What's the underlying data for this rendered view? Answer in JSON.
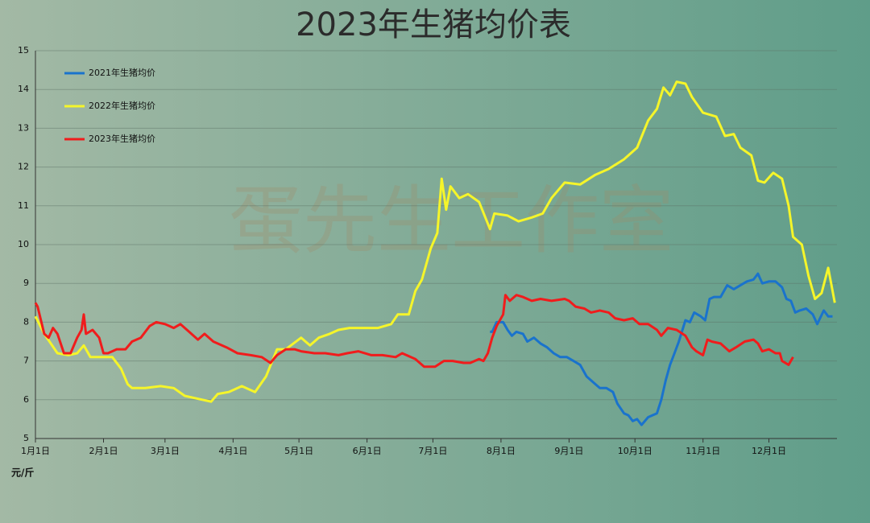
{
  "chart_data": {
    "type": "line",
    "title": "2023年生猪均价表",
    "watermark": "蛋先生工作室",
    "y_label": "元/斤",
    "xlim": [
      0,
      365
    ],
    "ylim": [
      5,
      15
    ],
    "yticks": [
      5,
      6,
      7,
      8,
      9,
      10,
      11,
      12,
      13,
      14,
      15
    ],
    "grid": true,
    "legend": "top-left",
    "xticks": [
      {
        "value": 0,
        "label": "1月1日"
      },
      {
        "value": 31,
        "label": "2月1日"
      },
      {
        "value": 59,
        "label": "3月1日"
      },
      {
        "value": 90,
        "label": "4月1日"
      },
      {
        "value": 120,
        "label": "5月1日"
      },
      {
        "value": 151,
        "label": "6月1日"
      },
      {
        "value": 181,
        "label": "7月1日"
      },
      {
        "value": 212,
        "label": "8月1日"
      },
      {
        "value": 243,
        "label": "9月1日"
      },
      {
        "value": 273,
        "label": "10月1日"
      },
      {
        "value": 304,
        "label": "11月1日"
      },
      {
        "value": 334,
        "label": "12月1日"
      }
    ],
    "series": [
      {
        "name": "2021年生猪均价",
        "color": "#1a73cc",
        "x": [
          207,
          208,
          210,
          213,
          215,
          217,
          219,
          222,
          224,
          227,
          230,
          233,
          236,
          239,
          242,
          245,
          248,
          251,
          254,
          257,
          260,
          263,
          265,
          268,
          270,
          272,
          274,
          276,
          279,
          281,
          283,
          285,
          287,
          289,
          291,
          293,
          296,
          298,
          300,
          303,
          305,
          307,
          309,
          312,
          315,
          318,
          321,
          324,
          327,
          329,
          331,
          334,
          337,
          340,
          342,
          344,
          346,
          348,
          351,
          354,
          356,
          359,
          361,
          363
        ],
        "values": [
          7.75,
          7.75,
          8.0,
          8.0,
          7.8,
          7.65,
          7.75,
          7.7,
          7.5,
          7.6,
          7.45,
          7.35,
          7.2,
          7.1,
          7.1,
          7.0,
          6.9,
          6.6,
          6.45,
          6.3,
          6.3,
          6.2,
          5.9,
          5.65,
          5.6,
          5.45,
          5.5,
          5.35,
          5.55,
          5.6,
          5.65,
          6.0,
          6.5,
          6.9,
          7.2,
          7.5,
          8.05,
          8.0,
          8.25,
          8.15,
          8.05,
          8.6,
          8.65,
          8.65,
          8.95,
          8.85,
          8.95,
          9.05,
          9.1,
          9.25,
          9.0,
          9.05,
          9.05,
          8.9,
          8.6,
          8.55,
          8.25,
          8.3,
          8.35,
          8.2,
          7.95,
          8.3,
          8.15,
          8.15
        ]
      },
      {
        "name": "2022年生猪均价",
        "color": "#f5f52a",
        "x": [
          0,
          4,
          10,
          15,
          19,
          22,
          25,
          30,
          35,
          39,
          42,
          44,
          50,
          57,
          63,
          68,
          76,
          80,
          83,
          88,
          94,
          100,
          105,
          110,
          114,
          121,
          125,
          129,
          134,
          138,
          143,
          151,
          156,
          162,
          165,
          170,
          173,
          176,
          180,
          183,
          185,
          187,
          189,
          193,
          197,
          202,
          207,
          209,
          215,
          220,
          226,
          231,
          235,
          241,
          248,
          255,
          261,
          268,
          274,
          279,
          283,
          286,
          289,
          292,
          296,
          299,
          304,
          310,
          314,
          318,
          321,
          326,
          329,
          332,
          336,
          340,
          343,
          345,
          349,
          352,
          355,
          358,
          361,
          364
        ],
        "values": [
          8.15,
          7.7,
          7.2,
          7.15,
          7.2,
          7.4,
          7.1,
          7.1,
          7.1,
          6.8,
          6.4,
          6.3,
          6.3,
          6.35,
          6.3,
          6.1,
          6.0,
          5.95,
          6.15,
          6.2,
          6.35,
          6.2,
          6.6,
          7.3,
          7.3,
          7.6,
          7.4,
          7.6,
          7.7,
          7.8,
          7.85,
          7.85,
          7.85,
          7.95,
          8.2,
          8.2,
          8.8,
          9.1,
          9.9,
          10.3,
          11.7,
          10.9,
          11.5,
          11.2,
          11.3,
          11.1,
          10.4,
          10.8,
          10.75,
          10.6,
          10.7,
          10.8,
          11.2,
          11.6,
          11.55,
          11.8,
          11.95,
          12.2,
          12.5,
          13.2,
          13.5,
          14.05,
          13.85,
          14.2,
          14.15,
          13.8,
          13.4,
          13.3,
          12.8,
          12.85,
          12.5,
          12.3,
          11.65,
          11.6,
          11.85,
          11.7,
          11.0,
          10.2,
          10.0,
          9.2,
          8.6,
          8.75,
          9.4,
          8.5
        ]
      },
      {
        "name": "2023年生猪均价",
        "color": "#f01c1c",
        "x": [
          0,
          1,
          4,
          6,
          8,
          10,
          13,
          16,
          19,
          21,
          22,
          23,
          26,
          29,
          31,
          33,
          37,
          41,
          44,
          48,
          52,
          55,
          59,
          63,
          66,
          70,
          74,
          77,
          81,
          87,
          92,
          98,
          103,
          107,
          110,
          114,
          118,
          121,
          127,
          132,
          138,
          142,
          147,
          153,
          158,
          164,
          167,
          173,
          177,
          182,
          186,
          190,
          195,
          198,
          202,
          204,
          206,
          208,
          210,
          213,
          214,
          216,
          219,
          222,
          226,
          230,
          235,
          241,
          243,
          246,
          250,
          253,
          257,
          261,
          264,
          268,
          272,
          275,
          279,
          283,
          285,
          288,
          292,
          296,
          299,
          301,
          304,
          306,
          308,
          312,
          316,
          319,
          323,
          327,
          329,
          331,
          334,
          337,
          339,
          340,
          343,
          345
        ],
        "values": [
          8.5,
          8.4,
          7.7,
          7.6,
          7.85,
          7.7,
          7.2,
          7.2,
          7.6,
          7.8,
          8.2,
          7.7,
          7.8,
          7.6,
          7.2,
          7.2,
          7.3,
          7.3,
          7.5,
          7.6,
          7.9,
          8.0,
          7.95,
          7.85,
          7.95,
          7.75,
          7.55,
          7.7,
          7.5,
          7.35,
          7.2,
          7.15,
          7.1,
          6.95,
          7.15,
          7.3,
          7.3,
          7.25,
          7.2,
          7.2,
          7.15,
          7.2,
          7.25,
          7.15,
          7.15,
          7.1,
          7.2,
          7.05,
          6.85,
          6.85,
          7.0,
          7.0,
          6.95,
          6.95,
          7.05,
          7.0,
          7.2,
          7.6,
          7.9,
          8.2,
          8.7,
          8.55,
          8.7,
          8.65,
          8.55,
          8.6,
          8.55,
          8.6,
          8.55,
          8.4,
          8.35,
          8.25,
          8.3,
          8.25,
          8.1,
          8.05,
          8.1,
          7.95,
          7.95,
          7.8,
          7.65,
          7.85,
          7.8,
          7.65,
          7.35,
          7.25,
          7.15,
          7.55,
          7.5,
          7.45,
          7.25,
          7.35,
          7.5,
          7.55,
          7.45,
          7.25,
          7.3,
          7.2,
          7.2,
          7.0,
          6.9,
          7.1
        ]
      }
    ]
  }
}
